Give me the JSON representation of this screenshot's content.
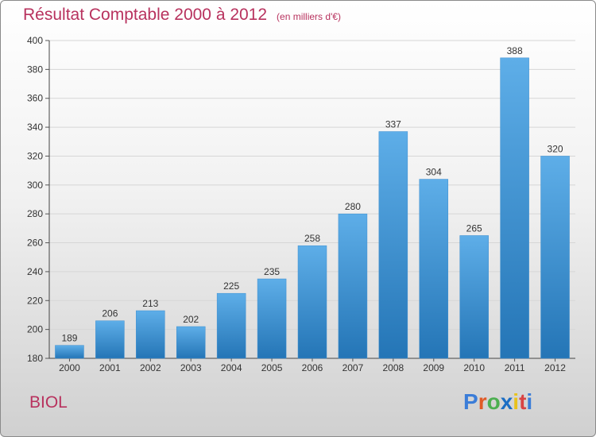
{
  "colors": {
    "accent": "#b8325e",
    "bar_light": "#5eaee8",
    "bar_dark": "#2475b6",
    "logo_letters": [
      "#3b7dd8",
      "#e05a26",
      "#4caf50",
      "#1c6ec4",
      "#e8c21c",
      "#d94343"
    ]
  },
  "header": {
    "title": "Résultat Comptable 2000 à 2012",
    "subtitle": "(en milliers d'€)"
  },
  "footer": {
    "place": "BIOL",
    "logo_letters": [
      "P",
      "r",
      "o",
      "x",
      "i",
      "t",
      "i"
    ]
  },
  "chart_data": {
    "type": "bar",
    "title": "Résultat Comptable 2000 à 2012",
    "subtitle": "(en milliers d'€)",
    "xlabel": "",
    "ylabel": "",
    "categories": [
      "2000",
      "2001",
      "2002",
      "2003",
      "2004",
      "2005",
      "2006",
      "2007",
      "2008",
      "2009",
      "2010",
      "2011",
      "2012"
    ],
    "values": [
      189,
      206,
      213,
      202,
      225,
      235,
      258,
      280,
      337,
      304,
      265,
      388,
      320
    ],
    "data_labels": [
      "189",
      "206",
      "213",
      "202",
      "225",
      "235",
      "258",
      "280",
      "337",
      "304",
      "265",
      "388",
      "320"
    ],
    "ylim": [
      180,
      400
    ],
    "yticks": [
      180,
      200,
      220,
      240,
      260,
      280,
      300,
      320,
      340,
      360,
      380,
      400
    ],
    "grid": true
  }
}
